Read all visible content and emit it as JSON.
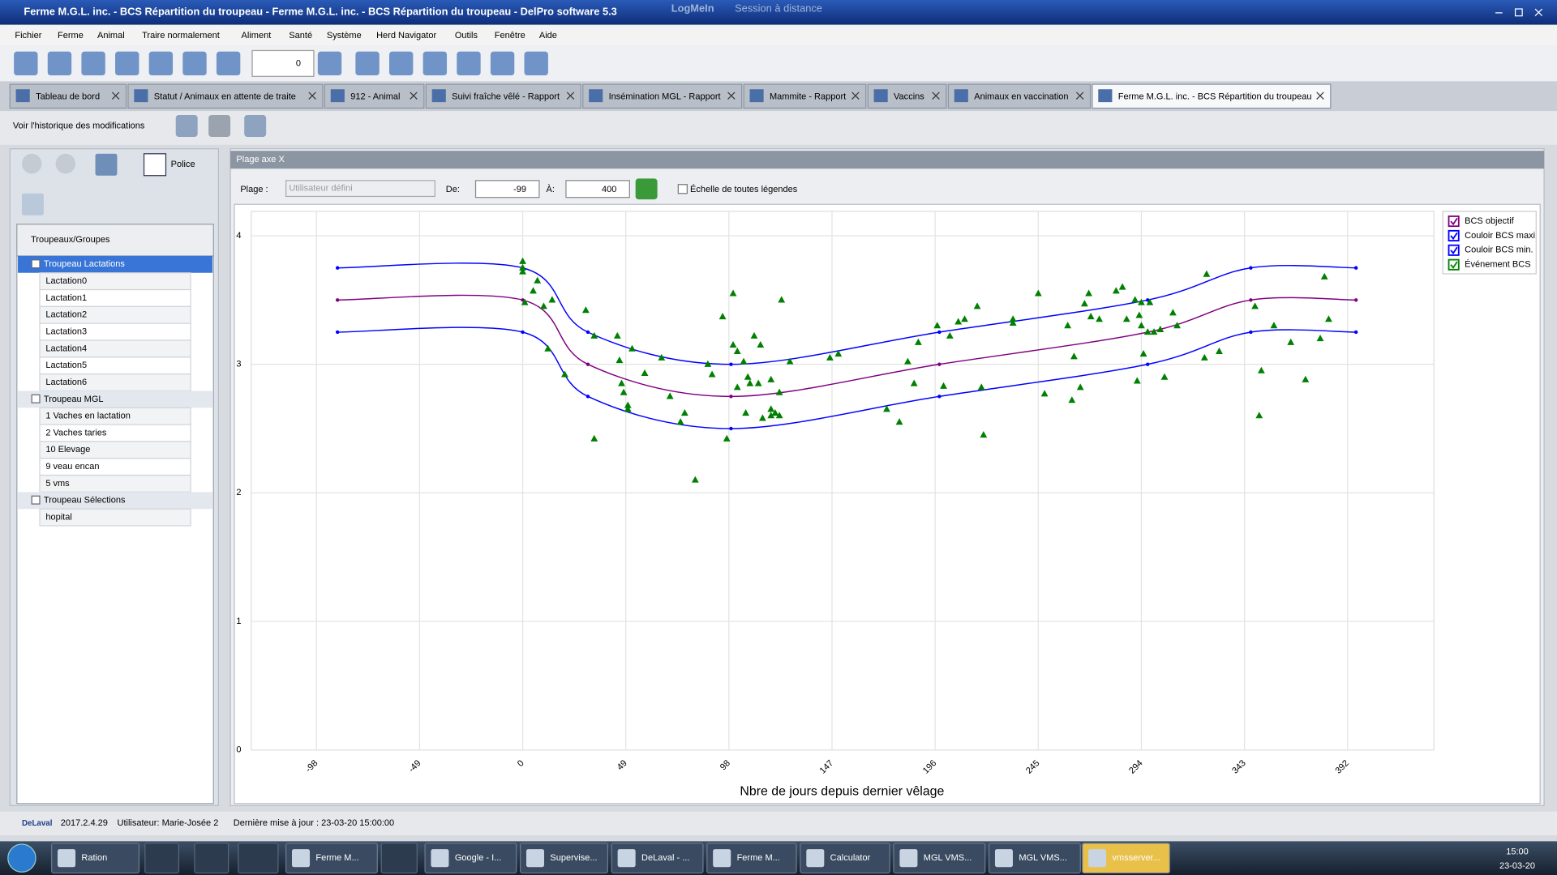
{
  "window": {
    "title": "Ferme M.G.L. inc. - BCS Répartition du troupeau - Ferme M.G.L. inc. - BCS Répartition du troupeau - DelPro software 5.3",
    "remote": "LogMeIn",
    "remote_status": "Session à distance"
  },
  "menu": [
    "Fichier",
    "Ferme",
    "Animal",
    "Traire normalement",
    "Aliment",
    "Santé",
    "Système",
    "Herd Navigator",
    "Outils",
    "Fenêtre",
    "Aide"
  ],
  "toolbar": {
    "counter": "0"
  },
  "tabs": [
    "Tableau de bord",
    "Statut / Animaux en attente de traite",
    "912  - Animal",
    "Suivi fraîche vêlé - Rapport",
    "Insémination MGL - Rapport",
    "Mammite - Rapport",
    "Vaccins",
    "Animaux en vaccination",
    "Ferme M.G.L. inc. - BCS Répartition du troupeau"
  ],
  "history_link": "Voir l'historique des modifications",
  "font_button": "Police",
  "tree": {
    "header": "Troupeaux/Groupes",
    "groups": [
      {
        "name": "Troupeau  Lactations",
        "items": [
          "Lactation0",
          "Lactation1",
          "Lactation2",
          "Lactation3",
          "Lactation4",
          "Lactation5",
          "Lactation6"
        ]
      },
      {
        "name": "Troupeau  MGL",
        "items": [
          "1 Vaches en lactation",
          "2 Vaches taries",
          "10 Elevage",
          "9 veau encan",
          "5 vms"
        ]
      },
      {
        "name": "Troupeau  Sélections",
        "items": [
          "hopital"
        ]
      }
    ]
  },
  "panel": {
    "title": "Plage axe X",
    "range_label": "Plage :",
    "range_value": "Utilisateur défini",
    "from_label": "De:",
    "from_value": "-99",
    "to_label": "À:",
    "to_value": "400",
    "all_legends": "Échelle de toutes légendes"
  },
  "chart_data": {
    "type": "line",
    "xlabel": "Nbre de jours depuis dernier vêlage",
    "xlim": [
      -129,
      433
    ],
    "ylim": [
      0,
      4.19
    ],
    "xticks": [
      -98,
      -49,
      0,
      49,
      98,
      147,
      196,
      245,
      294,
      343,
      392
    ],
    "yticks": [
      0,
      1,
      2,
      3,
      4
    ],
    "grid": true,
    "legend": "top-right",
    "series": [
      {
        "name": "BCS objectif",
        "type": "line",
        "color": "#800080",
        "x": [
          -88,
          0,
          31,
          99,
          198,
          297,
          346,
          396
        ],
        "values": [
          3.5,
          3.5,
          3.0,
          2.75,
          3.0,
          3.25,
          3.5,
          3.5
        ]
      },
      {
        "name": "Couloir BCS maxi",
        "type": "line",
        "color": "#0000ff",
        "x": [
          -88,
          0,
          31,
          99,
          198,
          297,
          346,
          396
        ],
        "values": [
          3.75,
          3.75,
          3.25,
          3.0,
          3.25,
          3.5,
          3.75,
          3.75
        ]
      },
      {
        "name": "Couloir BCS min.",
        "type": "line",
        "color": "#0000ff",
        "x": [
          -88,
          0,
          31,
          99,
          198,
          297,
          346,
          396
        ],
        "values": [
          3.25,
          3.25,
          2.75,
          2.5,
          2.75,
          3.0,
          3.25,
          3.25
        ]
      },
      {
        "name": "Événement BCS",
        "type": "scatter",
        "color": "#008000",
        "x": [
          0,
          0,
          0,
          1,
          5,
          7,
          10,
          12,
          14,
          20,
          30,
          34,
          34,
          45,
          46,
          47,
          48,
          50,
          50,
          52,
          58,
          66,
          70,
          75,
          77,
          82,
          88,
          90,
          95,
          97,
          100,
          100,
          102,
          102,
          105,
          106,
          107,
          108,
          110,
          112,
          113,
          114,
          118,
          118,
          118,
          120,
          122,
          122,
          123,
          127,
          146,
          150,
          173,
          179,
          183,
          186,
          188,
          197,
          200,
          203,
          207,
          210,
          216,
          218,
          219,
          233,
          233,
          245,
          248,
          259,
          261,
          262,
          265,
          267,
          269,
          270,
          274,
          282,
          285,
          287,
          291,
          292,
          293,
          294,
          294,
          295,
          297,
          298,
          300,
          303,
          305,
          309,
          311,
          324,
          325,
          331,
          348,
          350,
          351,
          357,
          365,
          372,
          379,
          381,
          383
        ],
        "values": [
          3.8,
          3.75,
          3.72,
          3.48,
          3.57,
          3.65,
          3.45,
          3.12,
          3.5,
          2.92,
          3.42,
          2.42,
          3.22,
          3.22,
          3.03,
          2.85,
          2.78,
          2.65,
          2.68,
          3.12,
          2.93,
          3.05,
          2.75,
          2.55,
          2.62,
          2.1,
          3.0,
          2.92,
          3.37,
          2.42,
          3.55,
          3.15,
          2.82,
          3.1,
          3.02,
          2.62,
          2.9,
          2.85,
          3.22,
          2.85,
          3.15,
          2.58,
          2.6,
          2.65,
          2.88,
          2.62,
          2.78,
          2.6,
          3.5,
          3.02,
          3.05,
          3.08,
          2.65,
          2.55,
          3.02,
          2.85,
          3.17,
          3.3,
          2.83,
          3.22,
          3.33,
          3.35,
          3.45,
          2.82,
          2.45,
          3.32,
          3.35,
          3.55,
          2.77,
          3.3,
          2.72,
          3.06,
          2.82,
          3.47,
          3.55,
          3.37,
          3.35,
          3.57,
          3.6,
          3.35,
          3.5,
          2.87,
          3.38,
          3.48,
          3.3,
          3.08,
          3.25,
          3.48,
          3.25,
          3.27,
          2.9,
          3.4,
          3.3,
          3.05,
          3.7,
          3.1,
          3.45,
          2.6,
          2.95,
          3.3,
          3.17,
          2.88,
          3.2,
          3.68,
          3.35
        ]
      }
    ]
  },
  "status": {
    "brand": "DeLaval",
    "version": "2017.2.4.29",
    "user": "Utilisateur: Marie-Josée 2",
    "updated": "Dernière mise à jour : 23-03-20 15:00:00"
  },
  "taskbar": {
    "items": [
      "Ration",
      "Ferme M...",
      "Google - I...",
      "Supervise...",
      "DeLaval - ...",
      "Ferme M...",
      "Calculator",
      "MGL VMS...",
      "MGL VMS...",
      "vmsserver..."
    ],
    "time": "15:00",
    "date": "23-03-20"
  }
}
